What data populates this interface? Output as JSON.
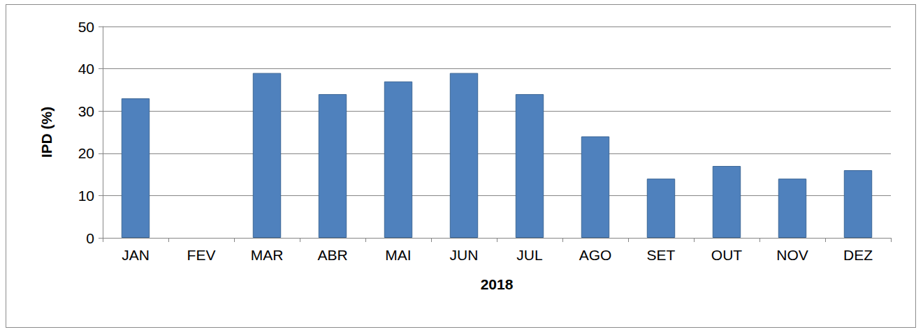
{
  "chart_data": {
    "type": "bar",
    "categories": [
      "JAN",
      "FEV",
      "MAR",
      "ABR",
      "MAI",
      "JUN",
      "JUL",
      "AGO",
      "SET",
      "OUT",
      "NOV",
      "DEZ"
    ],
    "values": [
      33,
      null,
      39,
      34,
      37,
      39,
      34,
      24,
      14,
      17,
      14,
      16
    ],
    "color": "#4f81bd",
    "x_label": "2018",
    "y_label": "IPD (%)",
    "ylim": [
      0,
      50
    ],
    "yticks": [
      0,
      10,
      20,
      30,
      40,
      50
    ],
    "grid": true
  }
}
